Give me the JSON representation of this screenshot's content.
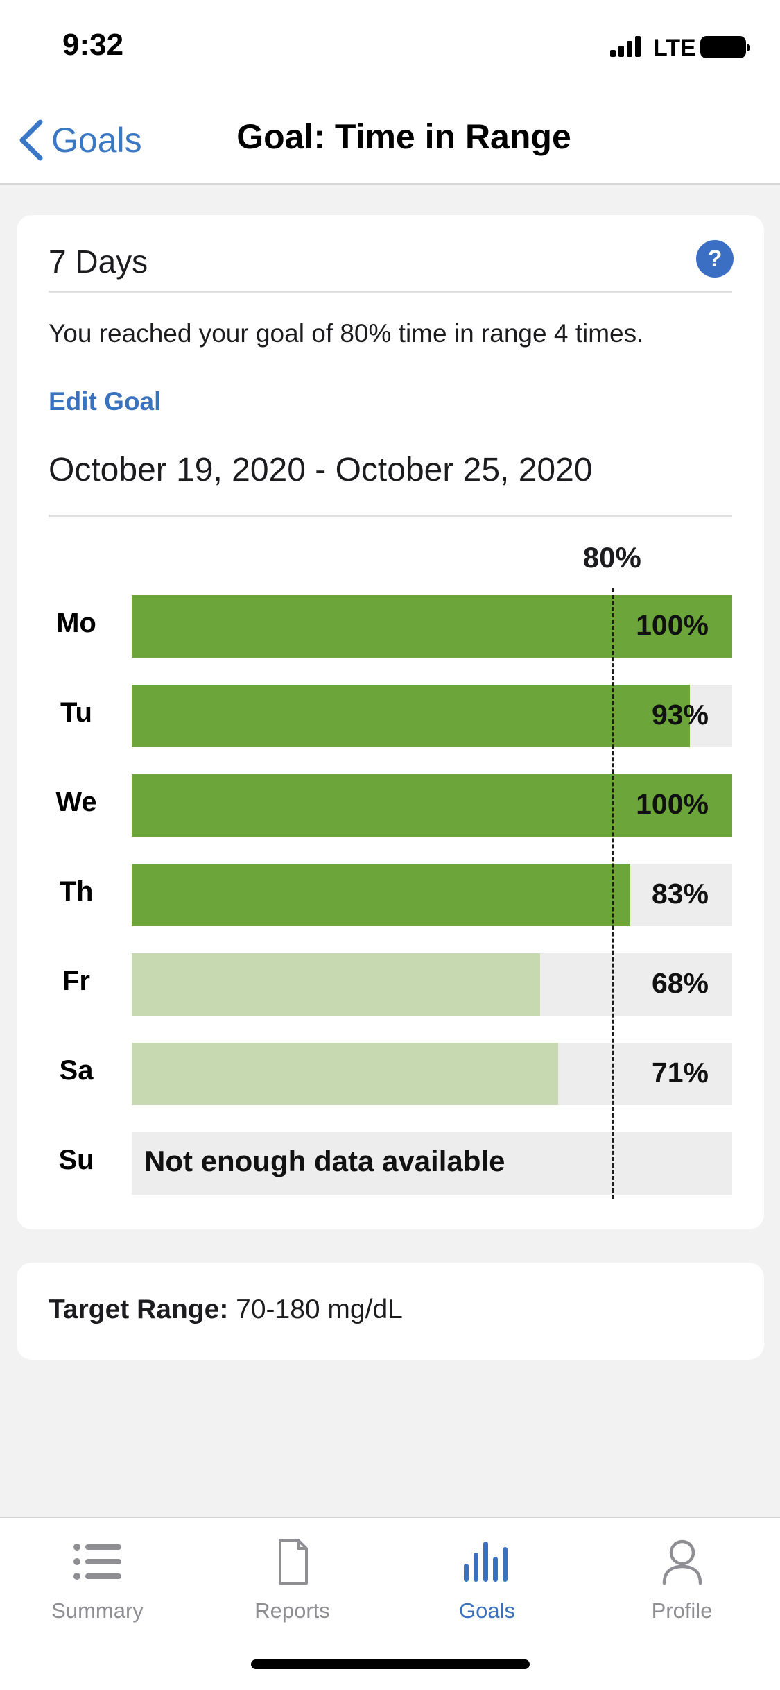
{
  "status_bar": {
    "time": "9:32",
    "network": "LTE"
  },
  "nav": {
    "back_label": "Goals",
    "title": "Goal: Time in Range"
  },
  "card": {
    "period": "7 Days",
    "help_label": "?",
    "summary": "You reached your goal of 80% time in range 4 times.",
    "edit_goal": "Edit Goal",
    "date_range": "October 19, 2020 - October 25, 2020"
  },
  "chart_data": {
    "type": "bar",
    "goal_label": "80%",
    "goal_value": 80,
    "xlim": [
      0,
      100
    ],
    "colors": {
      "met": "#6ca539",
      "not_met": "#c6d9b0",
      "track": "#ededed"
    },
    "bars": [
      {
        "day": "Mo",
        "value": 100,
        "label": "100%"
      },
      {
        "day": "Tu",
        "value": 93,
        "label": "93%"
      },
      {
        "day": "We",
        "value": 100,
        "label": "100%"
      },
      {
        "day": "Th",
        "value": 83,
        "label": "83%"
      },
      {
        "day": "Fr",
        "value": 68,
        "label": "68%"
      },
      {
        "day": "Sa",
        "value": 71,
        "label": "71%"
      },
      {
        "day": "Su",
        "value": null,
        "label": "Not enough data available"
      }
    ]
  },
  "target": {
    "label": "Target Range:",
    "value": "70-180 mg/dL"
  },
  "tabs": [
    {
      "label": "Summary",
      "icon": "list-icon",
      "active": false
    },
    {
      "label": "Reports",
      "icon": "document-icon",
      "active": false
    },
    {
      "label": "Goals",
      "icon": "bar-chart-icon",
      "active": true
    },
    {
      "label": "Profile",
      "icon": "person-icon",
      "active": false
    }
  ]
}
